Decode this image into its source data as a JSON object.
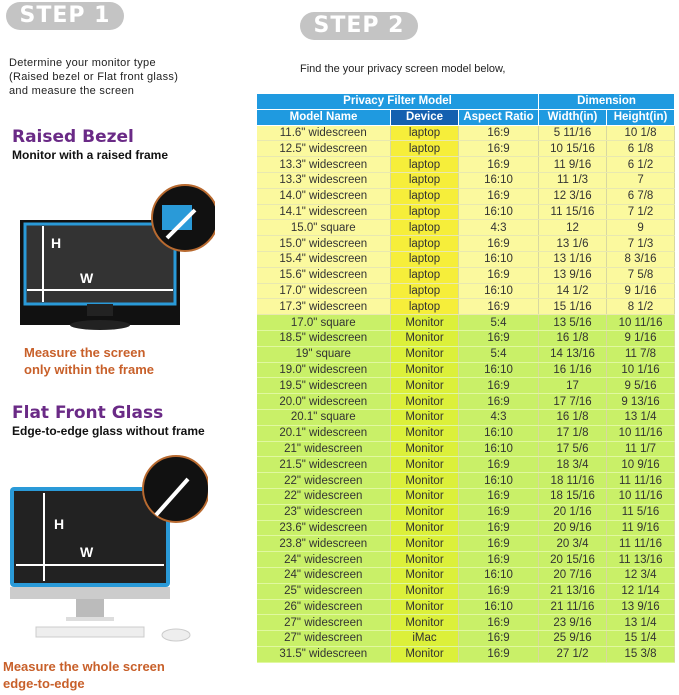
{
  "step1": {
    "badge": "STEP 1",
    "intro": "Determine your monitor type\n(Raised bezel or Flat front glass)\nand measure the screen",
    "raised": {
      "title": "Raised Bezel",
      "subtitle": "Monitor with a raised frame",
      "note": "Measure the screen\nonly within the frame",
      "h_label": "H",
      "w_label": "W"
    },
    "flat": {
      "title": "Flat Front Glass",
      "subtitle": "Edge-to-edge glass without frame",
      "note": "Measure the whole screen\nedge-to-edge",
      "h_label": "H",
      "w_label": "W"
    }
  },
  "step2": {
    "badge": "STEP 2",
    "instruction": "Find the your privacy screen model below,",
    "table": {
      "group_headers": [
        "Privacy Filter Model",
        "Dimension"
      ],
      "columns": [
        "Model Name",
        "Device",
        "Aspect Ratio",
        "Width(in)",
        "Height(in)"
      ],
      "rows": [
        [
          "11.6\" widescreen",
          "laptop",
          "16:9",
          "5 11/16",
          "10 1/8"
        ],
        [
          "12.5\" widescreen",
          "laptop",
          "16:9",
          "10 15/16",
          "6 1/8"
        ],
        [
          "13.3\" widescreen",
          "laptop",
          "16:9",
          "11 9/16",
          "6 1/2"
        ],
        [
          "13.3\" widescreen",
          "laptop",
          "16:10",
          "11 1/3",
          "7"
        ],
        [
          "14.0\" widescreen",
          "laptop",
          "16:9",
          "12 3/16",
          "6 7/8"
        ],
        [
          "14.1\" widescreen",
          "laptop",
          "16:10",
          "11 15/16",
          "7 1/2"
        ],
        [
          "15.0\" square",
          "laptop",
          "4:3",
          "12",
          "9"
        ],
        [
          "15.0\" widescreen",
          "laptop",
          "16:9",
          "13 1/6",
          "7 1/3"
        ],
        [
          "15.4\" widescreen",
          "laptop",
          "16:10",
          "13 1/16",
          "8 3/16"
        ],
        [
          "15.6\" widescreen",
          "laptop",
          "16:9",
          "13 9/16",
          "7 5/8"
        ],
        [
          "17.0\" widescreen",
          "laptop",
          "16:10",
          "14 1/2",
          "9 1/16"
        ],
        [
          "17.3\" widescreen",
          "laptop",
          "16:9",
          "15 1/16",
          "8 1/2"
        ],
        [
          "17.0\" square",
          "Monitor",
          "5:4",
          "13 5/16",
          "10 11/16"
        ],
        [
          "18.5\" widescreen",
          "Monitor",
          "16:9",
          "16 1/8",
          "9 1/16"
        ],
        [
          "19\" square",
          "Monitor",
          "5:4",
          "14 13/16",
          "11 7/8"
        ],
        [
          "19.0\" widescreen",
          "Monitor",
          "16:10",
          "16 1/16",
          "10 1/16"
        ],
        [
          "19.5\" widescreen",
          "Monitor",
          "16:9",
          "17",
          "9 5/16"
        ],
        [
          "20.0\" widescreen",
          "Monitor",
          "16:9",
          "17 7/16",
          "9 13/16"
        ],
        [
          "20.1\" square",
          "Monitor",
          "4:3",
          "16 1/8",
          "13 1/4"
        ],
        [
          "20.1\" widescreen",
          "Monitor",
          "16:10",
          "17 1/8",
          "10 11/16"
        ],
        [
          "21\" widescreen",
          "Monitor",
          "16:10",
          "17 5/6",
          "11 1/7"
        ],
        [
          "21.5\" widescreen",
          "Monitor",
          "16:9",
          "18 3/4",
          "10 9/16"
        ],
        [
          "22\" widescreen",
          "Monitor",
          "16:10",
          "18 11/16",
          "11 11/16"
        ],
        [
          "22\" widescreen",
          "Monitor",
          "16:9",
          "18 15/16",
          "10 11/16"
        ],
        [
          "23\" widescreen",
          "Monitor",
          "16:9",
          "20 1/16",
          "11 5/16"
        ],
        [
          "23.6\" widescreen",
          "Monitor",
          "16:9",
          "20 9/16",
          "11 9/16"
        ],
        [
          "23.8\" widescreen",
          "Monitor",
          "16:9",
          "20 3/4",
          "11 11/16"
        ],
        [
          "24\" widescreen",
          "Monitor",
          "16:9",
          "20 15/16",
          "11 13/16"
        ],
        [
          "24\" widescreen",
          "Monitor",
          "16:10",
          "20 7/16",
          "12 3/4"
        ],
        [
          "25\" widescreen",
          "Monitor",
          "16:9",
          "21 13/16",
          "12 1/14"
        ],
        [
          "26\" widescreen",
          "Monitor",
          "16:10",
          "21 11/16",
          "13 9/16"
        ],
        [
          "27\" widescreen",
          "Monitor",
          "16:9",
          "23 9/16",
          "13 1/4"
        ],
        [
          "27\" widescreen",
          "iMac",
          "16:9",
          "25 9/16",
          "15 1/4"
        ],
        [
          "31.5\" widescreen",
          "Monitor",
          "16:9",
          "27 1/2",
          "15 3/8"
        ]
      ]
    }
  },
  "colors": {
    "header": "#1f9ae0",
    "device_header": "#1460b0",
    "laptop_row": "#fbf99e",
    "monitor_row": "#c9f068",
    "title_purple": "#6a2a86",
    "note_orange": "#c8602a",
    "screen_border": "#2a9ad8"
  }
}
